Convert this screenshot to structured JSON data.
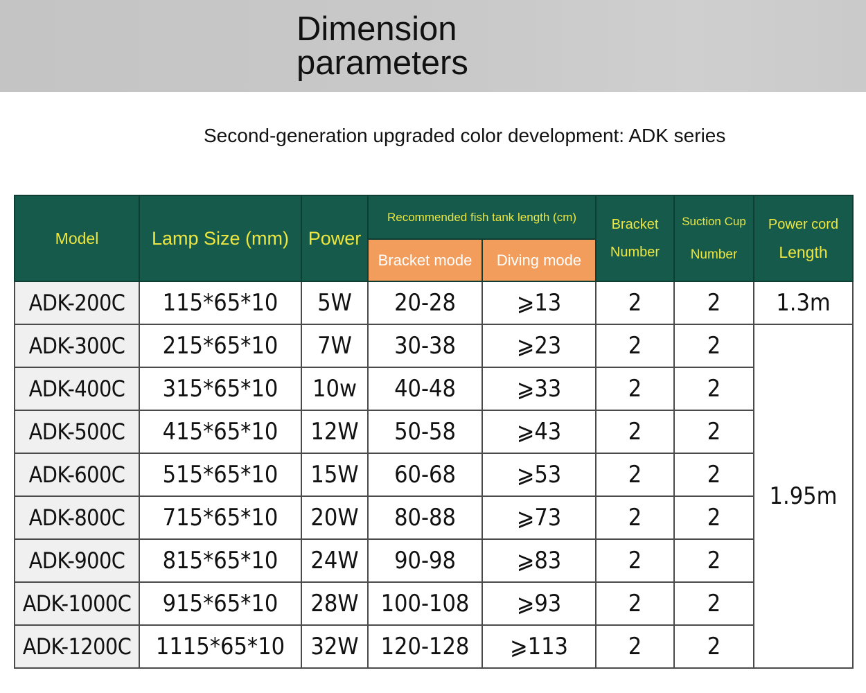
{
  "banner": {
    "title_line1": "Dimension",
    "title_line2": "parameters"
  },
  "subtitle": "Second-generation upgraded color development: ADK series",
  "table": {
    "headers": {
      "model": "Model",
      "lamp_size": "Lamp Size (mm)",
      "power": "Power",
      "recommended": "Recommended fish tank length (cm)",
      "bracket_mode": "Bracket mode",
      "diving_mode": "Diving mode",
      "bracket_number_l1": "Bracket",
      "bracket_number_l2": "Number",
      "suction_l1": "Suction Cup",
      "suction_l2": "Number",
      "cord_l1": "Power cord",
      "cord_l2": "Length"
    },
    "rows": [
      {
        "model": "ADK-200C",
        "size": "115*65*10",
        "power": "5W",
        "bracket": "20-28",
        "diving": "⩾13",
        "bracket_num": "2",
        "suction": "2"
      },
      {
        "model": "ADK-300C",
        "size": "215*65*10",
        "power": "7W",
        "bracket": "30-38",
        "diving": "⩾23",
        "bracket_num": "2",
        "suction": "2"
      },
      {
        "model": "ADK-400C",
        "size": "315*65*10",
        "power": "10w",
        "bracket": "40-48",
        "diving": "⩾33",
        "bracket_num": "2",
        "suction": "2"
      },
      {
        "model": "ADK-500C",
        "size": "415*65*10",
        "power": "12W",
        "bracket": "50-58",
        "diving": "⩾43",
        "bracket_num": "2",
        "suction": "2"
      },
      {
        "model": "ADK-600C",
        "size": "515*65*10",
        "power": "15W",
        "bracket": "60-68",
        "diving": "⩾53",
        "bracket_num": "2",
        "suction": "2"
      },
      {
        "model": "ADK-800C",
        "size": "715*65*10",
        "power": "20W",
        "bracket": "80-88",
        "diving": "⩾73",
        "bracket_num": "2",
        "suction": "2"
      },
      {
        "model": "ADK-900C",
        "size": "815*65*10",
        "power": "24W",
        "bracket": "90-98",
        "diving": "⩾83",
        "bracket_num": "2",
        "suction": "2"
      },
      {
        "model": "ADK-1000C",
        "size": "915*65*10",
        "power": "28W",
        "bracket": "100-108",
        "diving": "⩾93",
        "bracket_num": "2",
        "suction": "2"
      },
      {
        "model": "ADK-1200C",
        "size": "1115*65*10",
        "power": "32W",
        "bracket": "120-128",
        "diving": "⩾113",
        "bracket_num": "2",
        "suction": "2"
      }
    ],
    "cord_lengths": {
      "first": "1.3m",
      "rest": "1.95m"
    }
  },
  "colors": {
    "header_bg": "#155a4a",
    "header_text": "#ede640",
    "subheader_bg": "#f29d5c"
  }
}
